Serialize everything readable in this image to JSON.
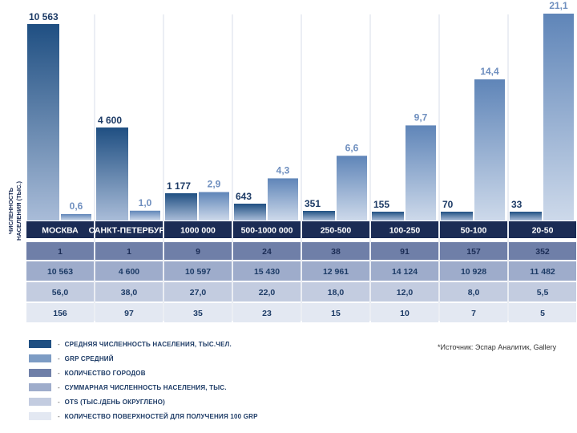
{
  "chart_data": {
    "type": "bar",
    "ylabel": "ЧИСЛЕННОСТЬ НАСЕЛЕНИЯ (ТЫС.)",
    "categories": [
      "МОСКВА",
      "САНКТ-ПЕТЕРБУРГ",
      "1000 000",
      "500-1000 000",
      "250-500",
      "100-250",
      "50-100",
      "20-50"
    ],
    "series": [
      {
        "name": "СРЕДНЯЯ ЧИСЛЕННОСТЬ НАСЕЛЕНИЯ, ТЫС.ЧЕЛ.",
        "values": [
          10563,
          4600,
          1177,
          643,
          351,
          155,
          70,
          33
        ],
        "labels": [
          "10 563",
          "4 600",
          "1 177",
          "643",
          "351",
          "155",
          "70",
          "33"
        ]
      },
      {
        "name": "GRP СРЕДНИЙ",
        "values": [
          0.6,
          1.0,
          2.9,
          4.3,
          6.6,
          9.7,
          14.4,
          21.1
        ],
        "labels": [
          "0,6",
          "1,0",
          "2,9",
          "4,3",
          "6,6",
          "9,7",
          "14,4",
          "21,1"
        ]
      }
    ],
    "table_rows": [
      {
        "name": "КОЛИЧЕСТВО ГОРОДОВ",
        "values": [
          "1",
          "1",
          "9",
          "24",
          "38",
          "91",
          "157",
          "352"
        ]
      },
      {
        "name": "СУММАРНАЯ ЧИСЛЕННОСТЬ НАСЕЛЕНИЯ, ТЫС.",
        "values": [
          "10 563",
          "4 600",
          "10 597",
          "15 430",
          "12 961",
          "14 124",
          "10 928",
          "11 482"
        ]
      },
      {
        "name": "OTS (ТЫС./ДЕНЬ ОКРУГЛЕНО)",
        "values": [
          "56,0",
          "38,0",
          "27,0",
          "22,0",
          "18,0",
          "12,0",
          "8,0",
          "5,5"
        ]
      },
      {
        "name": "КОЛИЧЕСТВО ПОВЕРХНОСТЕЙ ДЛЯ ПОЛУЧЕНИЯ 100 GRP",
        "values": [
          "156",
          "97",
          "35",
          "23",
          "15",
          "10",
          "7",
          "5"
        ]
      }
    ]
  },
  "legend": [
    {
      "label": "СРЕДНЯЯ ЧИСЛЕННОСТЬ НАСЕЛЕНИЯ, ТЫС.ЧЕЛ.",
      "color": "#1f4f82"
    },
    {
      "label": "GRP СРЕДНИЙ",
      "color": "#7d9cc4"
    },
    {
      "label": "КОЛИЧЕСТВО ГОРОДОВ",
      "color": "#6f7fa8"
    },
    {
      "label": "СУММАРНАЯ ЧИСЛЕННОСТЬ НАСЕЛЕНИЯ, ТЫС.",
      "color": "#9eaccb"
    },
    {
      "label": "OTS (ТЫС./ДЕНЬ ОКРУГЛЕНО)",
      "color": "#c3cce0"
    },
    {
      "label": "КОЛИЧЕСТВО ПОВЕРХНОСТЕЙ ДЛЯ ПОЛУЧЕНИЯ 100 GRP",
      "color": "#e3e8f2"
    }
  ],
  "legend_dash": "-",
  "source_note": "*Источник: Эспар Аналитик, Gallery",
  "colors": {
    "pop_top": "#1f4f82",
    "grp_top": "#5f85b8",
    "header_row": "#1b2c55",
    "row1": "#6f7fa8",
    "row2": "#9eaccb",
    "row3": "#c3cce0",
    "row4": "#e3e8f2",
    "value_text": "#1d3b66",
    "grp_label": "#6f8fbf"
  }
}
